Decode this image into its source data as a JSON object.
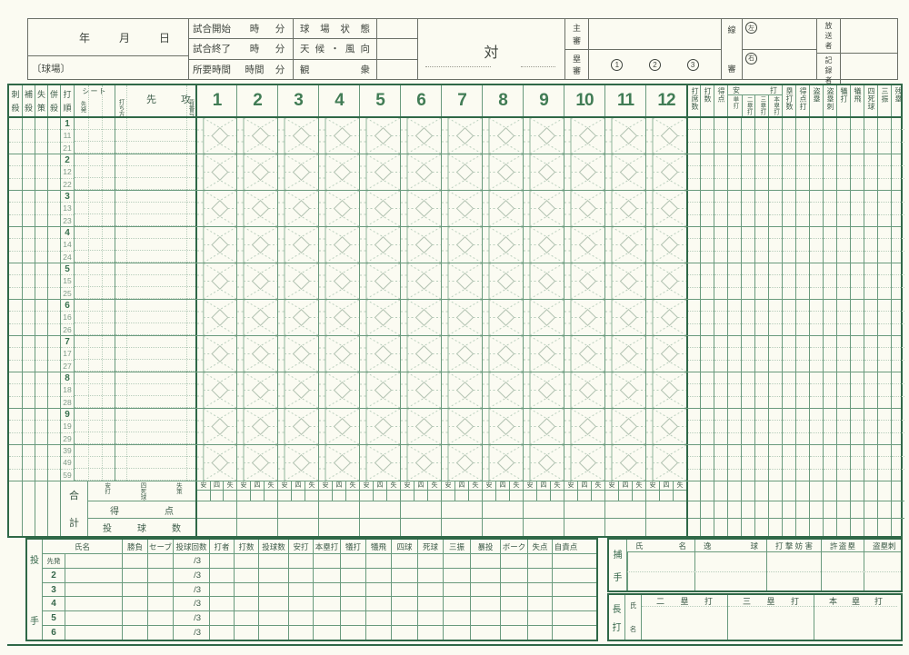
{
  "colors": {
    "border_green": "#2f6847",
    "line_green": "#699a7c",
    "accent_green": "#417c55",
    "dotted_green": "#b7cdbb",
    "paper": "#fbfbf2"
  },
  "header": {
    "date": "年月日",
    "stadium": "〔球場〕",
    "time_rows": [
      {
        "label": "試合開始",
        "h": "時",
        "m": "分"
      },
      {
        "label": "試合終了",
        "h": "時",
        "m": "分"
      },
      {
        "label": "所要時間",
        "h": "時間",
        "m": "分"
      }
    ],
    "cond_rows": [
      {
        "label": "球場状態"
      },
      {
        "label": "天候・風向"
      },
      {
        "label": "観衆"
      }
    ],
    "vs": "対",
    "umpires": {
      "chief": "主審",
      "base": "塁審",
      "base_numbers": [
        "1",
        "2",
        "3"
      ],
      "line": "線審",
      "left": "左",
      "right": "右"
    },
    "staff": [
      {
        "label": "放送者"
      },
      {
        "label": "記録者"
      }
    ]
  },
  "grid": {
    "col_headers": [
      "刺殺",
      "補殺",
      "失策",
      "併殺",
      "打順"
    ],
    "seat": {
      "label": "シート",
      "sub": "先発"
    },
    "attack": {
      "left": "先",
      "right": "攻",
      "bat_style": "打ち方",
      "uniform": "背番号"
    },
    "innings": [
      "1",
      "2",
      "3",
      "4",
      "5",
      "6",
      "7",
      "8",
      "9",
      "10",
      "11",
      "12"
    ],
    "stat_headers_pre": [
      "打席数",
      "打数",
      "得点"
    ],
    "hits_group": {
      "label": "安打",
      "subs": [
        "単打",
        "二塁打",
        "三塁打",
        "本塁打"
      ]
    },
    "stat_headers_post": [
      "塁打数",
      "得点打",
      "盗塁",
      "盗塁刺",
      "犠打",
      "犠飛",
      "四死球",
      "三振",
      "残塁"
    ],
    "blocks": [
      {
        "nums": [
          "1",
          "11",
          "21"
        ]
      },
      {
        "nums": [
          "2",
          "12",
          "22"
        ]
      },
      {
        "nums": [
          "3",
          "13",
          "23"
        ]
      },
      {
        "nums": [
          "4",
          "14",
          "24"
        ]
      },
      {
        "nums": [
          "5",
          "15",
          "25"
        ]
      },
      {
        "nums": [
          "6",
          "16",
          "26"
        ]
      },
      {
        "nums": [
          "7",
          "17",
          "27"
        ]
      },
      {
        "nums": [
          "8",
          "18",
          "28"
        ]
      },
      {
        "nums": [
          "9",
          "19",
          "29"
        ]
      },
      {
        "nums": [
          "39",
          "49",
          "59"
        ]
      }
    ],
    "totals": {
      "label": "合計",
      "category_labels": [
        "安打",
        "四死球",
        "失策"
      ],
      "inning_sub_labels": [
        "安",
        "四",
        "失"
      ],
      "runs_label": "得点",
      "pitch_count_label": "投球数"
    }
  },
  "pitchers": {
    "side_label": "投手",
    "name_header": "氏名",
    "headers": [
      "勝負",
      "セーブ",
      "投球回数",
      "打者",
      "打数",
      "投球数",
      "安打",
      "本塁打",
      "犠打",
      "犠飛",
      "四球",
      "死球",
      "三振",
      "暴投",
      "ボーク",
      "失点",
      "自責点"
    ],
    "rows": [
      {
        "label": "先発",
        "innings_pitched": "/3"
      },
      {
        "label": "2",
        "innings_pitched": "/3"
      },
      {
        "label": "3",
        "innings_pitched": "/3"
      },
      {
        "label": "4",
        "innings_pitched": "/3"
      },
      {
        "label": "5",
        "innings_pitched": "/3"
      },
      {
        "label": "6",
        "innings_pitched": "/3"
      }
    ]
  },
  "catcher": {
    "side_label": "捕手",
    "headers": [
      "氏名",
      "逸球",
      "打撃妨害",
      "許盗塁",
      "盗塁刺"
    ]
  },
  "extra_base": {
    "side_label": "長打",
    "name_label": "氏名",
    "headers": [
      "二塁打",
      "三塁打",
      "本塁打"
    ]
  }
}
